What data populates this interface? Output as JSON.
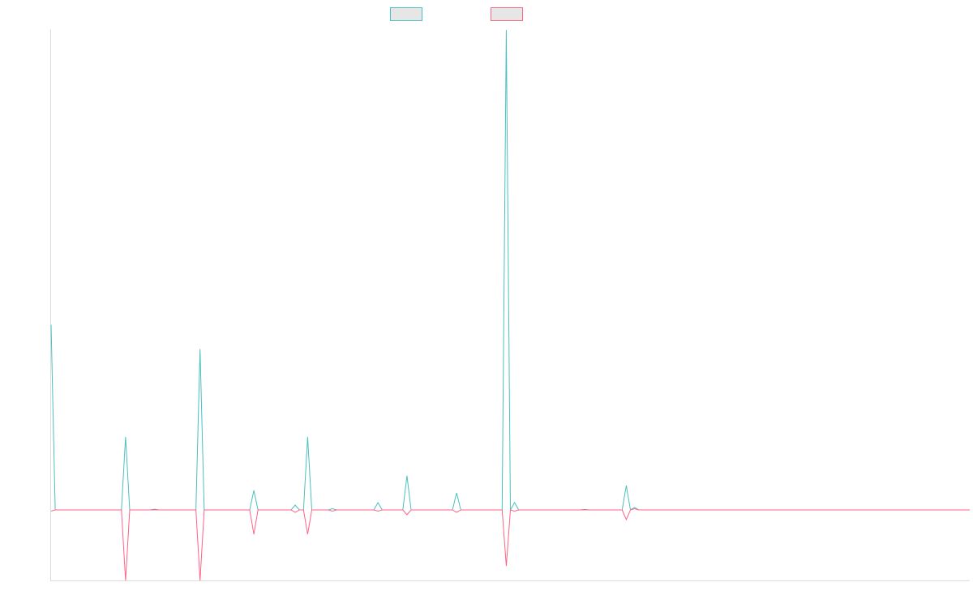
{
  "chart_data": {
    "type": "line",
    "title": "",
    "xlabel": "",
    "ylabel": "",
    "x_index_range": [
      0,
      222
    ],
    "ylim": [
      -29,
      197
    ],
    "grid": false,
    "legend": {
      "placement": "top-center",
      "labels_visible": false
    },
    "series": [
      {
        "color": "#4bc0c0",
        "points": [
          [
            0,
            76
          ],
          [
            1,
            0
          ],
          [
            17,
            0
          ],
          [
            18,
            30
          ],
          [
            19,
            0
          ],
          [
            35,
            0
          ],
          [
            36,
            66
          ],
          [
            37,
            0
          ],
          [
            48,
            0
          ],
          [
            49,
            8
          ],
          [
            50,
            0
          ],
          [
            58,
            0
          ],
          [
            59,
            2
          ],
          [
            60,
            0
          ],
          [
            61,
            0
          ],
          [
            62,
            30
          ],
          [
            63,
            0
          ],
          [
            67,
            0
          ],
          [
            68,
            0.5
          ],
          [
            69,
            0
          ],
          [
            78,
            0
          ],
          [
            79,
            3
          ],
          [
            80,
            0
          ],
          [
            85,
            0
          ],
          [
            86,
            14
          ],
          [
            87,
            0
          ],
          [
            97,
            0
          ],
          [
            98,
            7
          ],
          [
            99,
            0
          ],
          [
            109,
            0
          ],
          [
            110,
            197
          ],
          [
            111,
            0
          ],
          [
            112,
            3
          ],
          [
            113,
            0
          ],
          [
            138,
            0
          ],
          [
            139,
            10
          ],
          [
            140,
            0
          ],
          [
            141,
            1
          ],
          [
            142,
            0
          ],
          [
            222,
            0
          ]
        ]
      },
      {
        "color": "#ff6384",
        "points": [
          [
            0,
            -0.5
          ],
          [
            1,
            0
          ],
          [
            17,
            0
          ],
          [
            18,
            -29
          ],
          [
            19,
            0
          ],
          [
            24,
            0
          ],
          [
            25,
            0.3
          ],
          [
            26,
            0
          ],
          [
            35,
            0
          ],
          [
            36,
            -29
          ],
          [
            37,
            0
          ],
          [
            48,
            0
          ],
          [
            49,
            -10
          ],
          [
            50,
            0
          ],
          [
            58,
            0
          ],
          [
            59,
            -1
          ],
          [
            60,
            0
          ],
          [
            61,
            0
          ],
          [
            62,
            -10
          ],
          [
            63,
            0
          ],
          [
            67,
            0
          ],
          [
            68,
            -0.5
          ],
          [
            69,
            0
          ],
          [
            78,
            0
          ],
          [
            79,
            -0.5
          ],
          [
            80,
            0
          ],
          [
            85,
            0
          ],
          [
            86,
            -2
          ],
          [
            87,
            0
          ],
          [
            97,
            0
          ],
          [
            98,
            -1
          ],
          [
            99,
            0
          ],
          [
            109,
            0
          ],
          [
            110,
            -23
          ],
          [
            111,
            0
          ],
          [
            112,
            -0.5
          ],
          [
            113,
            0
          ],
          [
            128,
            0
          ],
          [
            129,
            0.2
          ],
          [
            130,
            0
          ],
          [
            138,
            0
          ],
          [
            139,
            -4
          ],
          [
            140,
            0
          ],
          [
            141,
            0.5
          ],
          [
            142,
            0
          ],
          [
            222,
            0
          ]
        ]
      }
    ]
  }
}
